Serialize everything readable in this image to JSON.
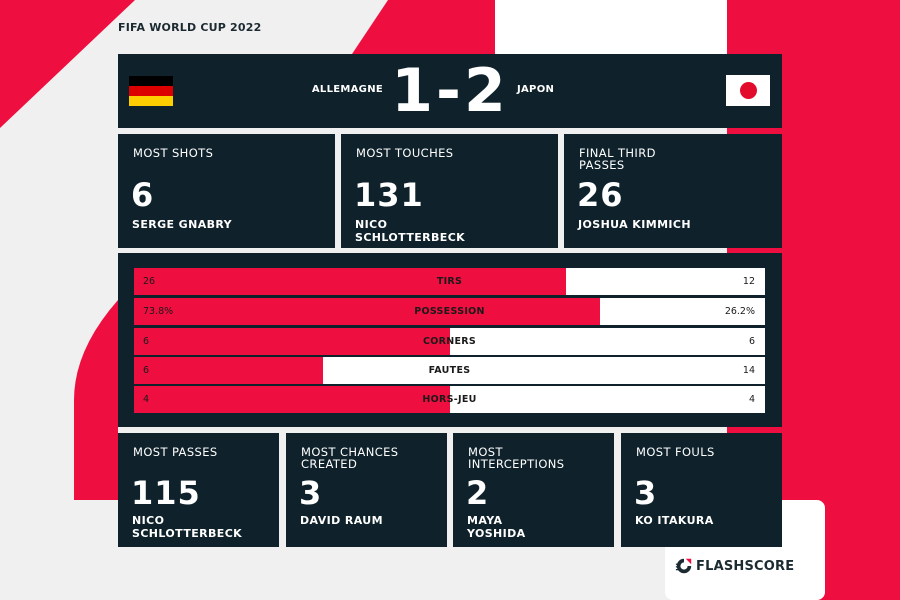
{
  "competition": "FIFA WORLD CUP 2022",
  "colors": {
    "accent": "#ee0e3f",
    "panel": "#0f222b",
    "background": "#f0f0f1",
    "germany_flag": [
      "#000000",
      "#dd0000",
      "#ffce00"
    ],
    "japan_disc": "#e30b2c"
  },
  "match": {
    "home_team": "ALLEMAGNE",
    "away_team": "JAPON",
    "score": "1-2",
    "home_flag": "germany-flag",
    "away_flag": "japan-flag"
  },
  "top_cards": [
    {
      "label": "MOST SHOTS",
      "value": "6",
      "player": "SERGE GNABRY"
    },
    {
      "label": "MOST TOUCHES",
      "value": "131",
      "player": "NICO SCHLOTTERBECK"
    },
    {
      "label": "FINAL THIRD PASSES",
      "value": "26",
      "player": "JOSHUA KIMMICH"
    }
  ],
  "stats": [
    {
      "label": "TIRS",
      "home": "26",
      "away": "12",
      "home_share": 0.684
    },
    {
      "label": "POSSESSION",
      "home": "73.8%",
      "away": "26.2%",
      "home_share": 0.738
    },
    {
      "label": "CORNERS",
      "home": "6",
      "away": "6",
      "home_share": 0.5
    },
    {
      "label": "FAUTES",
      "home": "6",
      "away": "14",
      "home_share": 0.3
    },
    {
      "label": "HORS-JEU",
      "home": "4",
      "away": "4",
      "home_share": 0.5
    }
  ],
  "bottom_cards": [
    {
      "label": "MOST PASSES",
      "value": "115",
      "player": "NICO SCHLOTTERBECK"
    },
    {
      "label": "MOST CHANCES CREATED",
      "value": "3",
      "player": "DAVID RAUM"
    },
    {
      "label": "MOST INTERCEPTIONS",
      "value": "2",
      "player": "MAYA YOSHIDA"
    },
    {
      "label": "MOST FOULS",
      "value": "3",
      "player": "KO ITAKURA"
    }
  ],
  "brand": {
    "name": "FLASHSCORE",
    "icon": "flashscore-logo-icon"
  }
}
